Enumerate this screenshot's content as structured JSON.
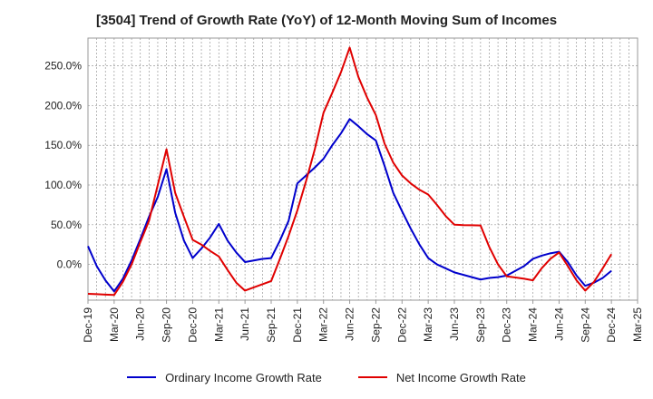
{
  "chart_data": {
    "type": "line",
    "title": "[3504]  Trend of Growth Rate (YoY) of 12-Month Moving Sum of Incomes",
    "xlabel": "",
    "ylabel": "",
    "ylim": [
      -45,
      285
    ],
    "yticks": [
      0,
      50,
      100,
      150,
      200,
      250
    ],
    "ytick_labels": [
      "0.0%",
      "50.0%",
      "100.0%",
      "150.0%",
      "200.0%",
      "250.0%"
    ],
    "x_labels": [
      "Dec-19",
      "Mar-20",
      "Jun-20",
      "Sep-20",
      "Dec-20",
      "Mar-21",
      "Jun-21",
      "Sep-21",
      "Dec-21",
      "Mar-22",
      "Jun-22",
      "Sep-22",
      "Dec-22",
      "Mar-23",
      "Jun-23",
      "Sep-23",
      "Dec-23",
      "Mar-24",
      "Jun-24",
      "Sep-24",
      "Dec-24",
      "Mar-25"
    ],
    "x": [
      "Dec-19",
      "Jan-20",
      "Feb-20",
      "Mar-20",
      "Apr-20",
      "May-20",
      "Jun-20",
      "Jul-20",
      "Aug-20",
      "Sep-20",
      "Oct-20",
      "Nov-20",
      "Dec-20",
      "Jan-21",
      "Feb-21",
      "Mar-21",
      "Apr-21",
      "May-21",
      "Jun-21",
      "Jul-21",
      "Aug-21",
      "Sep-21",
      "Oct-21",
      "Nov-21",
      "Dec-21",
      "Jan-22",
      "Feb-22",
      "Mar-22",
      "Apr-22",
      "May-22",
      "Jun-22",
      "Jul-22",
      "Aug-22",
      "Sep-22",
      "Oct-22",
      "Nov-22",
      "Dec-22",
      "Jan-23",
      "Feb-23",
      "Mar-23",
      "Apr-23",
      "May-23",
      "Jun-23",
      "Jul-23",
      "Aug-23",
      "Sep-23",
      "Oct-23",
      "Nov-23",
      "Dec-23",
      "Jan-24",
      "Feb-24",
      "Mar-24",
      "Apr-24",
      "May-24",
      "Jun-24",
      "Jul-24",
      "Aug-24",
      "Sep-24",
      "Oct-24",
      "Nov-24",
      "Dec-24",
      "Jan-25",
      "Feb-25",
      "Mar-25"
    ],
    "grid": true,
    "legend_position": "bottom",
    "series": [
      {
        "name": "Ordinary Income Growth Rate",
        "color": "#0000cc",
        "values": [
          23,
          -2,
          -20,
          -34,
          -18,
          5,
          32,
          60,
          85,
          120,
          65,
          30,
          8,
          20,
          34,
          51,
          30,
          15,
          3,
          5,
          7,
          8,
          30,
          55,
          102,
          112,
          122,
          133,
          150,
          165,
          183,
          174,
          164,
          156,
          124,
          90,
          67,
          45,
          25,
          8,
          0,
          -5,
          -10,
          -13,
          -16,
          -19,
          -17,
          -16,
          -14,
          -8,
          -2,
          7,
          11,
          14,
          16,
          3,
          -14,
          -27,
          -23,
          -17,
          -8,
          null,
          null,
          null
        ]
      },
      {
        "name": "Net Income Growth Rate",
        "color": "#e00000",
        "values": [
          -37,
          -37.5,
          -38,
          -38.5,
          -22,
          0,
          28,
          55,
          100,
          145,
          90,
          60,
          31,
          25,
          17,
          10,
          -7,
          -23,
          -33,
          -29,
          -25,
          -21,
          7,
          36,
          68,
          105,
          145,
          191,
          216,
          242,
          273,
          236,
          210,
          188,
          152,
          128,
          112,
          102,
          94,
          88,
          75,
          61,
          50,
          49.5,
          49.3,
          49,
          22,
          0,
          -15,
          -16.5,
          -18,
          -20,
          -5,
          7,
          15,
          -2,
          -20,
          -33,
          -22,
          -5,
          13,
          null,
          null,
          null
        ]
      }
    ]
  }
}
